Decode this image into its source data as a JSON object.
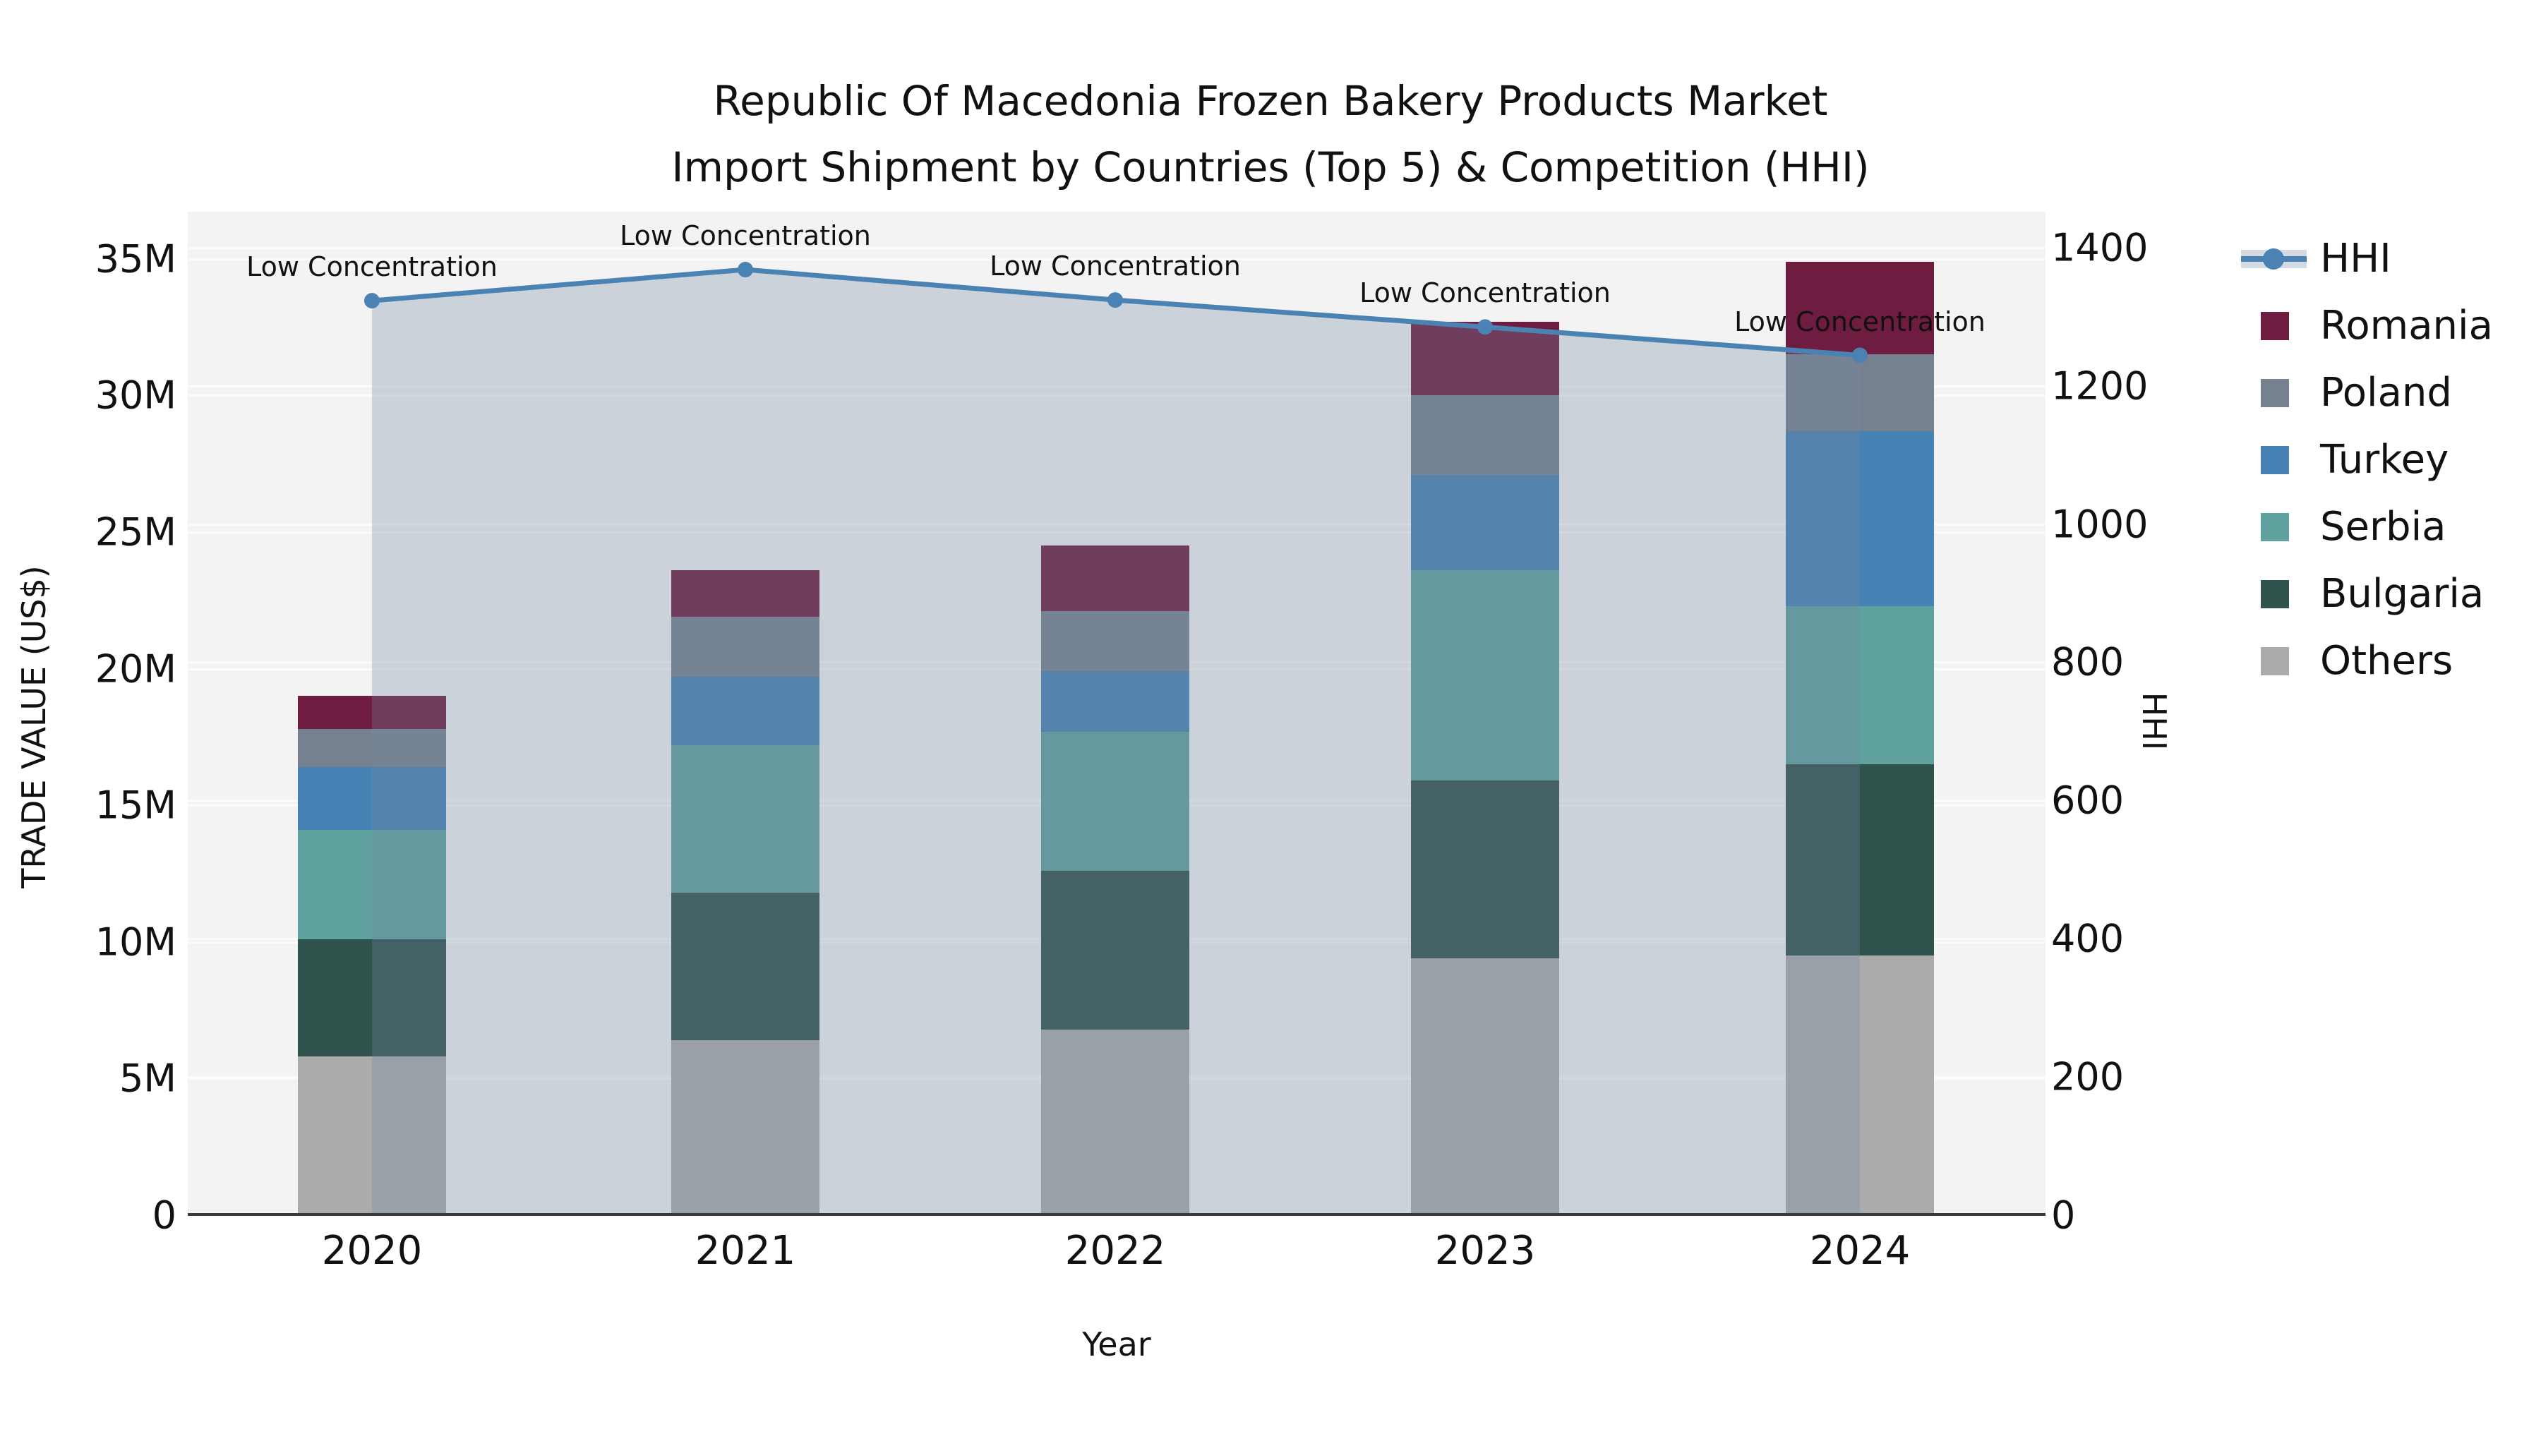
{
  "title": {
    "line1": "Republic Of Macedonia Frozen Bakery Products Market",
    "line2": "Import Shipment by Countries (Top 5) & Competition (HHI)"
  },
  "axes": {
    "x": {
      "label": "Year",
      "tick_labels": [
        "2020",
        "2021",
        "2022",
        "2023",
        "2024"
      ]
    },
    "y_left": {
      "label": "TRADE VALUE (US$)",
      "tick_labels": [
        "0",
        "5M",
        "10M",
        "15M",
        "20M",
        "25M",
        "30M",
        "35M"
      ],
      "tick_values_musd": [
        0,
        5,
        10,
        15,
        20,
        25,
        30,
        35
      ]
    },
    "y_right": {
      "label": "HHI",
      "tick_labels": [
        "0",
        "200",
        "400",
        "600",
        "800",
        "1000",
        "1200",
        "1400"
      ],
      "tick_values": [
        0,
        200,
        400,
        600,
        800,
        1000,
        1200,
        1400
      ]
    }
  },
  "legend": {
    "items": [
      "HHI",
      "Romania",
      "Poland",
      "Turkey",
      "Serbia",
      "Bulgaria",
      "Others"
    ]
  },
  "chart_data": {
    "type": "combo: stacked bar (left axis) + line with markers (right axis)",
    "categories": [
      "2020",
      "2021",
      "2022",
      "2023",
      "2024"
    ],
    "bar_unit": "million US$",
    "stack_order": "top-to-bottom as listed (Others is bottom of stack)",
    "series": [
      {
        "name": "Romania",
        "color": "#6E1C3F",
        "values": [
          1.2,
          1.7,
          2.4,
          2.7,
          3.4
        ]
      },
      {
        "name": "Poland",
        "color": "#76818F",
        "values": [
          1.4,
          2.2,
          2.2,
          2.9,
          2.8
        ]
      },
      {
        "name": "Turkey",
        "color": "#4682B4",
        "values": [
          2.3,
          2.5,
          2.2,
          3.5,
          6.4
        ]
      },
      {
        "name": "Serbia",
        "color": "#5FA19F",
        "values": [
          4.0,
          5.4,
          5.1,
          7.7,
          5.8
        ]
      },
      {
        "name": "Bulgaria",
        "color": "#2F524C",
        "values": [
          4.3,
          5.4,
          5.8,
          6.5,
          7.0
        ]
      },
      {
        "name": "Others",
        "color": "#ABABAB",
        "values": [
          5.8,
          6.4,
          6.8,
          9.4,
          9.5
        ]
      }
    ],
    "totals_musd": [
      19.0,
      23.6,
      24.5,
      32.7,
      34.9
    ],
    "line_series": {
      "name": "HHI",
      "axis": "right",
      "color": "#4A82B4",
      "area_fill": "rgba(116,135,161,0.31)",
      "values": [
        1323,
        1368,
        1324,
        1285,
        1244
      ]
    },
    "point_annotations": [
      "Low Concentration",
      "Low Concentration",
      "Low Concentration",
      "Low Concentration",
      "Low Concentration"
    ],
    "ylim_left_musd": [
      0,
      36.7
    ],
    "ylim_right": [
      0,
      1452
    ],
    "grid": true,
    "legend_position": "right of plot"
  },
  "colors": {
    "plot_bg": "#F3F3F3",
    "figure_bg": "#FFFFFF",
    "grid": "#FBFBFB",
    "spine": "#3A3A3A",
    "text": "#111111"
  }
}
